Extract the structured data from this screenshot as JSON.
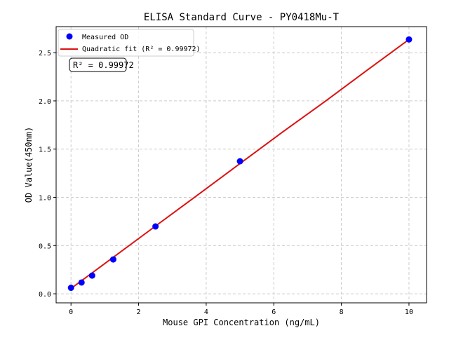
{
  "chart_data": {
    "type": "scatter",
    "title": "ELISA Standard Curve - PY0418Mu-T",
    "xlabel": "Mouse GPI Concentration (ng/mL)",
    "ylabel": "OD Value(450nm)",
    "xlim": [
      -0.44,
      10.52
    ],
    "ylim": [
      -0.094,
      2.77
    ],
    "xticks": [
      0,
      2,
      4,
      6,
      8,
      10
    ],
    "xtick_labels": [
      "0",
      "2",
      "4",
      "6",
      "8",
      "10"
    ],
    "yticks": [
      0,
      0.5,
      1,
      1.5,
      2,
      2.5
    ],
    "ytick_labels": [
      "0.0",
      "0.5",
      "1.0",
      "1.5",
      "2.0",
      "2.5"
    ],
    "grid": true,
    "legend_position": "top-left",
    "series": [
      {
        "name": "Measured OD",
        "kind": "scatter",
        "color": "#0000ff",
        "x": [
          0,
          0.3125,
          0.625,
          1.25,
          2.5,
          5,
          10
        ],
        "y": [
          0.062,
          0.117,
          0.189,
          0.356,
          0.698,
          1.374,
          2.637
        ]
      },
      {
        "name": "Quadratic fit (R² = 0.99972)",
        "kind": "line",
        "color": "#dd1111",
        "x": [
          0,
          1.25,
          2.5,
          3.75,
          5,
          6.25,
          7.5,
          8.75,
          10
        ],
        "y": [
          0.055,
          0.378,
          0.702,
          1.025,
          1.35,
          1.675,
          1.99,
          2.315,
          2.637
        ]
      }
    ],
    "annotation": "R² = 0.99972"
  }
}
